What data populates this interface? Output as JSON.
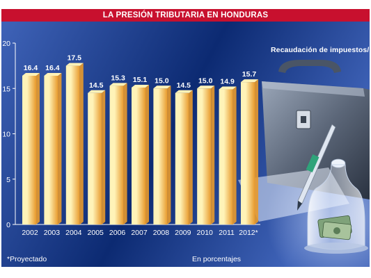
{
  "title": "LA PRESIÓN TRIBUTARIA EN HONDURAS",
  "subtitle": "Recaudación de impuestos/PIB",
  "footnote": "*Proyectado",
  "unit_note": "En porcentajes",
  "colors": {
    "title_bar": "#c8102e",
    "background_dark": "#0c2a72",
    "background_light": "#3f63b8",
    "bar_light": "#fff3b8",
    "bar_dark": "#e89a2c",
    "text": "#ffffff"
  },
  "illustration": {
    "objects": [
      "briefcase-icon",
      "pen-icon",
      "bell-jar-icon",
      "banknotes-icon"
    ]
  },
  "chart_data": {
    "type": "bar",
    "title": "LA PRESIÓN TRIBUTARIA EN HONDURAS",
    "subtitle": "Recaudación de impuestos/PIB",
    "categories": [
      "2002",
      "2003",
      "2004",
      "2005",
      "2006",
      "2007",
      "2008",
      "2009",
      "2010",
      "2011",
      "2012*"
    ],
    "values": [
      16.4,
      16.4,
      17.5,
      14.5,
      15.3,
      15.1,
      15.0,
      14.5,
      15.0,
      14.9,
      15.7
    ],
    "value_labels": [
      "16.4",
      "16.4",
      "17.5",
      "14.5",
      "15.3",
      "15.1",
      "15.0",
      "14.5",
      "15.0",
      "14.9",
      "15.7"
    ],
    "yticks": [
      "0",
      "5",
      "10",
      "15",
      "20"
    ],
    "ylim": [
      0,
      20
    ],
    "xlabel": "",
    "ylabel": "",
    "grid": false,
    "legend": "none"
  }
}
